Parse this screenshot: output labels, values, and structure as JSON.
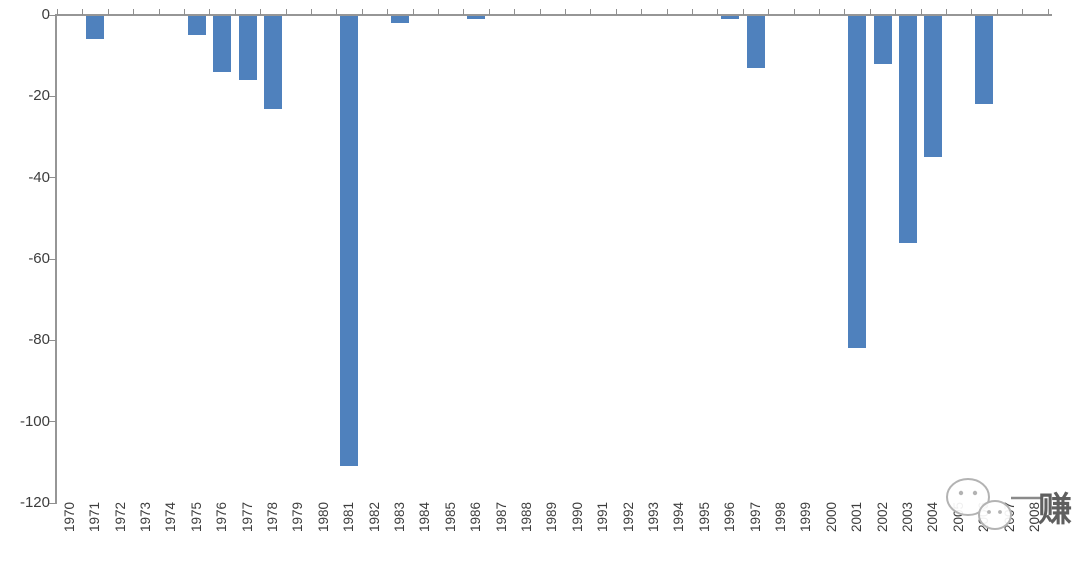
{
  "chart_data": {
    "type": "bar",
    "title": "",
    "xlabel": "",
    "ylabel": "",
    "categories": [
      "1970",
      "1971",
      "1972",
      "1973",
      "1974",
      "1975",
      "1976",
      "1977",
      "1978",
      "1979",
      "1980",
      "1981",
      "1982",
      "1983",
      "1984",
      "1985",
      "1986",
      "1987",
      "1988",
      "1989",
      "1990",
      "1991",
      "1992",
      "1993",
      "1994",
      "1995",
      "1996",
      "1997",
      "1998",
      "1999",
      "2000",
      "2001",
      "2002",
      "2003",
      "2004",
      "2005",
      "2006",
      "2007",
      "2008"
    ],
    "values": [
      0,
      -6,
      0,
      0,
      0,
      -5,
      -14,
      -16,
      -23,
      0,
      0,
      -111,
      0,
      -2,
      0,
      0,
      -1,
      0,
      0,
      0,
      0,
      0,
      0,
      0,
      0,
      0,
      -1,
      -13,
      0,
      0,
      0,
      -82,
      -12,
      -56,
      -35,
      0,
      -22,
      0,
      0
    ],
    "ylim": [
      -120,
      0
    ],
    "yticks": [
      0,
      -20,
      -40,
      -60,
      -80,
      -100,
      -120
    ],
    "grid": false,
    "legend": "none",
    "bar_color": "#4f81bd",
    "axis_color": "#969696",
    "label_color": "#3d3d3d"
  },
  "watermark": {
    "icon": "wechat-logo",
    "text": "赚"
  }
}
